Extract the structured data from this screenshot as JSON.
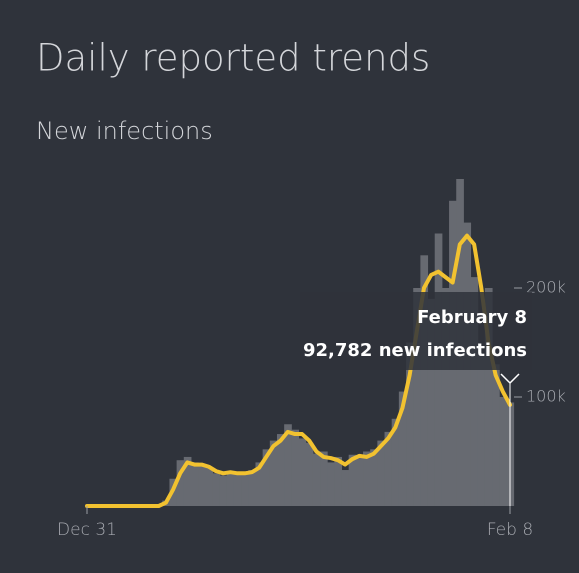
{
  "chart_data": {
    "type": "line",
    "title": "Daily reported trends",
    "subtitle": "New infections",
    "categories": [
      "Dec 31",
      null,
      null,
      null,
      null,
      null,
      null,
      null,
      null,
      null,
      null,
      null,
      null,
      null,
      null,
      null,
      null,
      null,
      null,
      null,
      null,
      null,
      null,
      null,
      null,
      null,
      null,
      null,
      null,
      null,
      null,
      null,
      null,
      null,
      null,
      null,
      null,
      null,
      null,
      null,
      null,
      null,
      null,
      null,
      null,
      null,
      null,
      null,
      null,
      null,
      null,
      null,
      null,
      null,
      null,
      null,
      null,
      null,
      null,
      "Feb 8"
    ],
    "series": [
      {
        "type": "bar",
        "color": "#676a71",
        "values": [
          0,
          0,
          0,
          0,
          0,
          0,
          0,
          0,
          0,
          0,
          0,
          5000,
          25000,
          42000,
          45000,
          40000,
          38000,
          35000,
          30000,
          28000,
          32000,
          30000,
          29000,
          33000,
          40000,
          52000,
          60000,
          66000,
          75000,
          70000,
          62000,
          58000,
          48000,
          50000,
          40000,
          45000,
          33000,
          47000,
          44000,
          50000,
          52000,
          60000,
          68000,
          80000,
          105000,
          150000,
          200000,
          230000,
          190000,
          250000,
          200000,
          280000,
          300000,
          260000,
          210000,
          140000,
          200000,
          130000,
          100000,
          95000
        ]
      },
      {
        "type": "line",
        "color": "#f2c230",
        "values": [
          0,
          0,
          0,
          0,
          0,
          0,
          0,
          0,
          0,
          0,
          0,
          3000,
          15000,
          30000,
          40000,
          38000,
          38000,
          36000,
          32000,
          30000,
          31000,
          30000,
          30000,
          31000,
          35000,
          45000,
          55000,
          60000,
          68000,
          66000,
          66000,
          60000,
          50000,
          45000,
          44000,
          42000,
          38000,
          43000,
          46000,
          45000,
          48000,
          55000,
          62000,
          72000,
          90000,
          120000,
          160000,
          200000,
          212000,
          215000,
          210000,
          205000,
          240000,
          248000,
          240000,
          200000,
          150000,
          120000,
          105000,
          92782
        ]
      }
    ],
    "ylim": [
      0,
      300000
    ],
    "yticks": [
      {
        "value": 100000,
        "label": "100k"
      },
      {
        "value": 200000,
        "label": "200k"
      }
    ],
    "tooltip": {
      "date": "February 8",
      "label": "92,782 new infections"
    }
  }
}
